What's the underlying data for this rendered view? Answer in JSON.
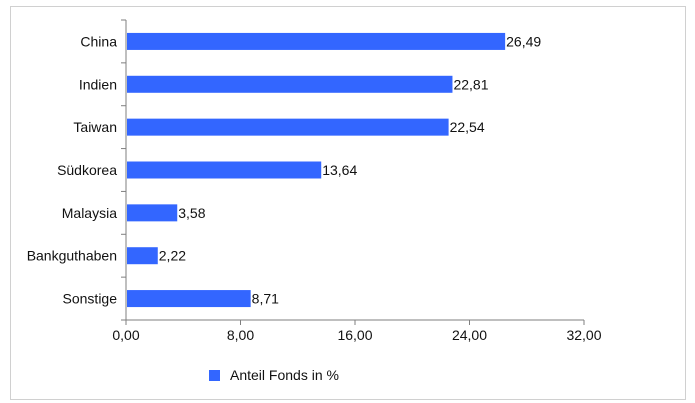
{
  "chart_data": {
    "type": "bar",
    "orientation": "horizontal",
    "categories": [
      "China",
      "Indien",
      "Taiwan",
      "Südkorea",
      "Malaysia",
      "Bankguthaben",
      "Sonstige"
    ],
    "series": [
      {
        "name": "Anteil Fonds in %",
        "values": [
          26.49,
          22.81,
          22.54,
          13.64,
          3.58,
          2.22,
          8.71
        ],
        "labels": [
          "26,49",
          "22,81",
          "22,54",
          "13,64",
          "3,58",
          "2,22",
          "8,71"
        ]
      }
    ],
    "xlim": [
      0,
      32
    ],
    "xticks": [
      0,
      8,
      16,
      24,
      32
    ],
    "xtick_labels": [
      "0,00",
      "8,00",
      "16,00",
      "24,00",
      "32,00"
    ],
    "grid": false,
    "legend_position": "bottom-left",
    "colors": {
      "bar": "#3366ff",
      "axis": "#7f7f7f"
    }
  }
}
